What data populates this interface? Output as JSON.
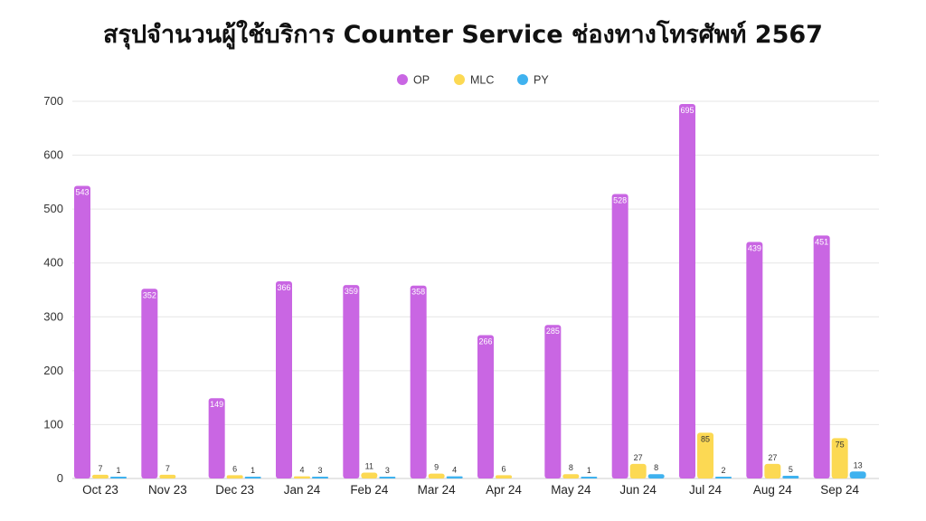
{
  "chart_data": {
    "type": "bar",
    "title": "สรุปจำนวนผู้ใช้บริการ Counter Service ช่องทางโทรศัพท์ 2567",
    "xlabel": "",
    "ylabel": "",
    "ylim": [
      0,
      700
    ],
    "yticks": [
      0,
      100,
      200,
      300,
      400,
      500,
      600,
      700
    ],
    "grid": true,
    "legend_position": "top-center",
    "categories": [
      "Oct 23",
      "Nov 23",
      "Dec 23",
      "Jan 24",
      "Feb 24",
      "Mar 24",
      "Apr 24",
      "May 24",
      "Jun 24",
      "Jul 24",
      "Aug 24",
      "Sep 24"
    ],
    "series": [
      {
        "name": "OP",
        "color": "#c966e3",
        "values": [
          543,
          352,
          149,
          366,
          359,
          358,
          266,
          285,
          528,
          695,
          439,
          451
        ]
      },
      {
        "name": "MLC",
        "color": "#fcd953",
        "values": [
          7,
          7,
          6,
          4,
          11,
          9,
          6,
          8,
          27,
          85,
          27,
          75
        ]
      },
      {
        "name": "PY",
        "color": "#3fb2ef",
        "values": [
          1,
          null,
          1,
          3,
          3,
          4,
          null,
          1,
          8,
          2,
          5,
          13
        ]
      }
    ]
  }
}
